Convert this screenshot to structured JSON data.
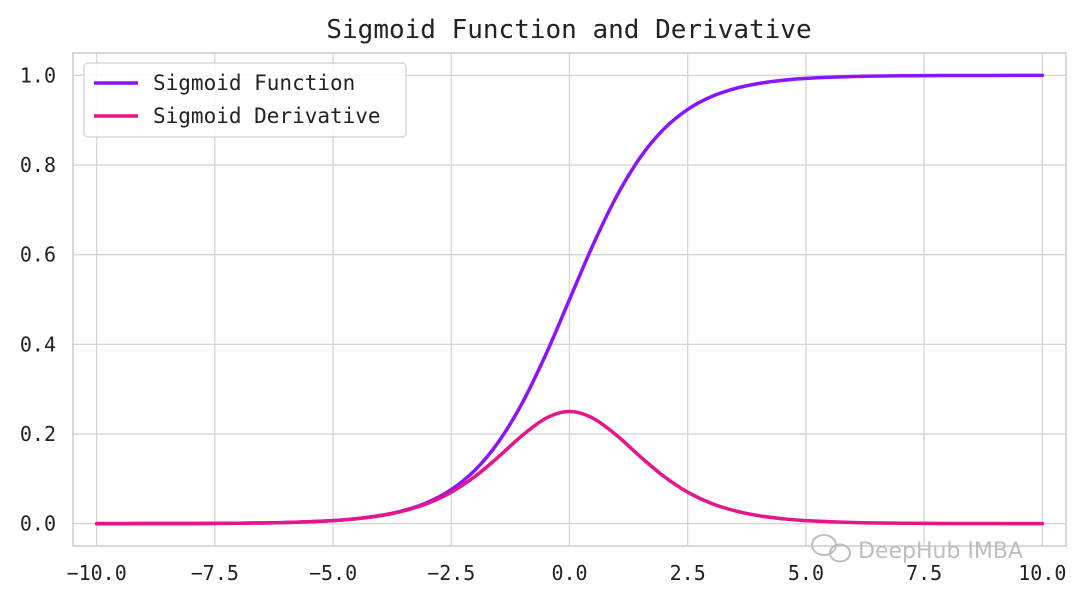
{
  "chart_data": {
    "type": "line",
    "title": "Sigmoid Function and Derivative",
    "xlabel": "",
    "ylabel": "",
    "xlim": [
      -10.5,
      10.5
    ],
    "ylim": [
      -0.05,
      1.05
    ],
    "grid": true,
    "legend_position": "top-left",
    "x_ticks": [
      -10.0,
      -7.5,
      -5.0,
      -2.5,
      0.0,
      2.5,
      5.0,
      7.5,
      10.0
    ],
    "x_tick_labels": [
      "−10.0",
      "−7.5",
      "−5.0",
      "−2.5",
      "0.0",
      "2.5",
      "5.0",
      "7.5",
      "10.0"
    ],
    "y_ticks": [
      0.0,
      0.2,
      0.4,
      0.6,
      0.8,
      1.0
    ],
    "y_tick_labels": [
      "0.0",
      "0.2",
      "0.4",
      "0.6",
      "0.8",
      "1.0"
    ],
    "x": [
      -10.0,
      -9.0,
      -8.0,
      -7.0,
      -6.0,
      -5.0,
      -4.5,
      -4.0,
      -3.5,
      -3.0,
      -2.5,
      -2.0,
      -1.5,
      -1.0,
      -0.5,
      0.0,
      0.5,
      1.0,
      1.5,
      2.0,
      2.5,
      3.0,
      3.5,
      4.0,
      4.5,
      5.0,
      6.0,
      7.0,
      8.0,
      9.0,
      10.0
    ],
    "series": [
      {
        "name": "Sigmoid Function",
        "color": "#8a14ff",
        "values": [
          0.0,
          0.0001,
          0.0003,
          0.0009,
          0.0025,
          0.0067,
          0.011,
          0.018,
          0.0293,
          0.0474,
          0.0759,
          0.1192,
          0.1824,
          0.2689,
          0.3775,
          0.5,
          0.6225,
          0.7311,
          0.8176,
          0.8808,
          0.9241,
          0.9526,
          0.9707,
          0.982,
          0.989,
          0.9933,
          0.9975,
          0.9991,
          0.9997,
          0.9999,
          1.0
        ]
      },
      {
        "name": "Sigmoid Derivative",
        "color": "#e6158a",
        "values": [
          0.0,
          0.0001,
          0.0003,
          0.0009,
          0.0025,
          0.0066,
          0.0109,
          0.0177,
          0.0285,
          0.0452,
          0.0701,
          0.105,
          0.1491,
          0.1966,
          0.235,
          0.25,
          0.235,
          0.1966,
          0.1491,
          0.105,
          0.0701,
          0.0452,
          0.0285,
          0.0177,
          0.0109,
          0.0066,
          0.0025,
          0.0009,
          0.0003,
          0.0001,
          0.0
        ]
      }
    ]
  },
  "colors": {
    "grid": "#d5d5d5",
    "axes_frame": "#cccccc",
    "text": "#222222",
    "watermark": "#b8b8b8"
  },
  "watermark": {
    "text": "DeepHub IMBA",
    "icon": "wechat-icon"
  }
}
